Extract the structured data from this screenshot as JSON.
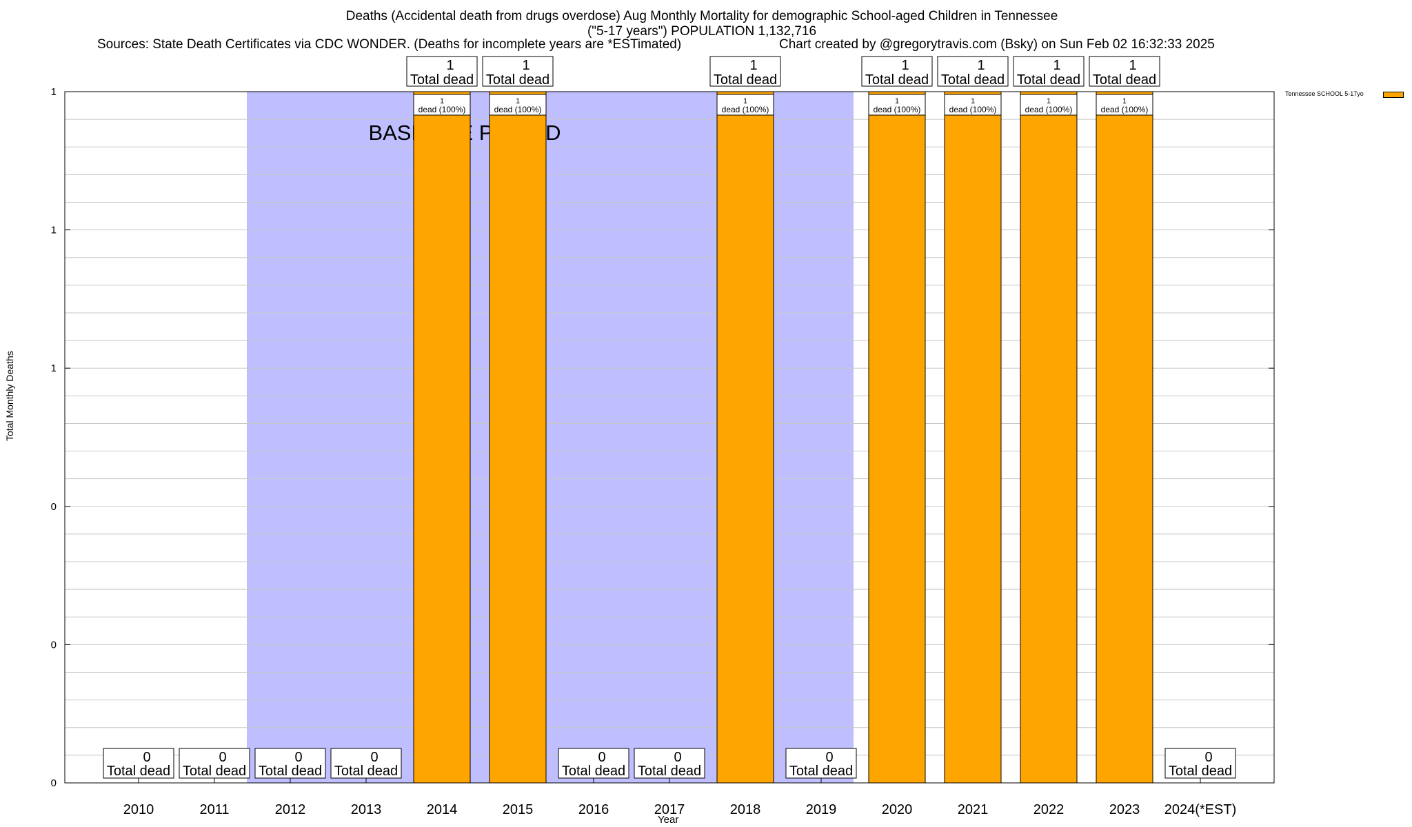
{
  "header": {
    "title_line1": "Deaths (Accidental death from drugs overdose) Aug Monthly Mortality for demographic School-aged Children in Tennessee",
    "title_line2": "(\"5-17 years\") POPULATION 1,132,716",
    "sources": "Sources: State Death Certificates via CDC WONDER. (Deaths for incomplete years are *ESTimated)",
    "credit": "Chart created by @gregorytravis.com (Bsky) on Sun Feb 02 16:32:33 2025"
  },
  "chart_data": {
    "type": "bar",
    "title": "Deaths (Accidental death from drugs overdose) Aug Monthly Mortality for demographic School-aged Children in Tennessee",
    "xlabel": "Year",
    "ylabel": "Total Monthly Deaths",
    "ylim": [
      0,
      1
    ],
    "y_tick_labels": [
      "0",
      "0",
      "0",
      "1",
      "1",
      "1"
    ],
    "categories": [
      "2010",
      "2011",
      "2012",
      "2013",
      "2014",
      "2015",
      "2016",
      "2017",
      "2018",
      "2019",
      "2020",
      "2021",
      "2022",
      "2023",
      "2024(*EST)"
    ],
    "series": [
      {
        "name": "Tennessee SCHOOL 5-17yo",
        "color": "#ffa500",
        "values": [
          0,
          0,
          0,
          0,
          1,
          1,
          0,
          0,
          1,
          0,
          1,
          1,
          1,
          1,
          0
        ]
      }
    ],
    "total_labels": [
      "0",
      "0",
      "0",
      "0",
      "1",
      "1",
      "0",
      "0",
      "1",
      "0",
      "1",
      "1",
      "1",
      "1",
      "0"
    ],
    "total_suffix": "Total dead",
    "bar_inner_labels": {
      "count": "1",
      "text": "dead (100%)"
    },
    "baseline": {
      "label": "BASELINE PERIOD",
      "color": "#bfbfff",
      "start": "2012",
      "end": "2019"
    },
    "legend_position": "top-right",
    "grid": true
  }
}
